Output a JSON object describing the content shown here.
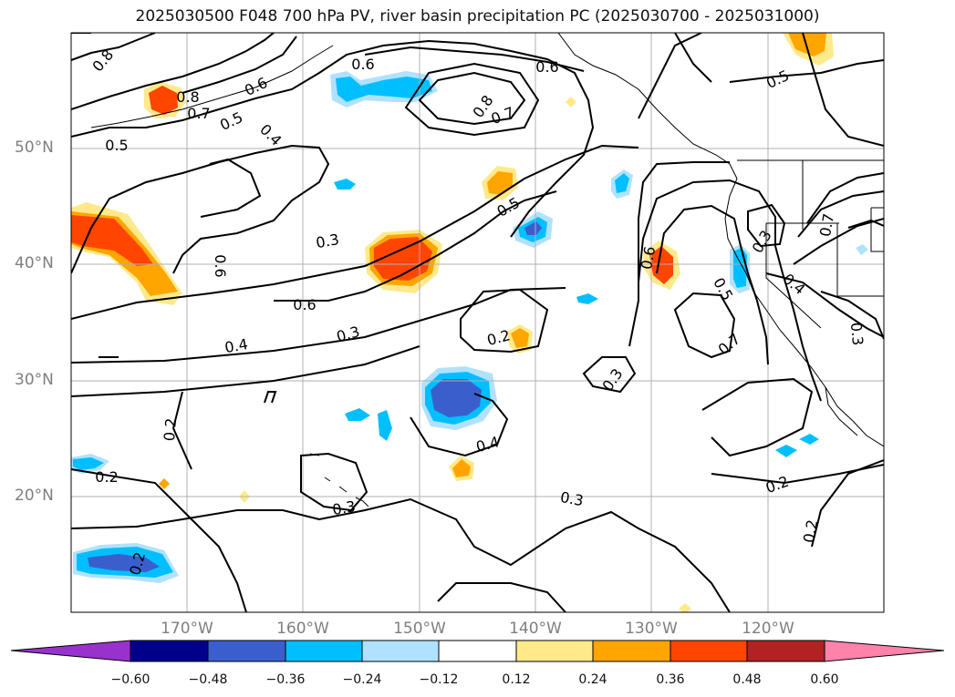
{
  "title": "2025030500 F048 700 hPa PV, river basin precipitation PC (2025030700 - 2025031000)",
  "lat_labels": [
    {
      "name": "lat-50n",
      "text": "50°N",
      "lat": 50
    },
    {
      "name": "lat-40n",
      "text": "40°N",
      "lat": 40
    },
    {
      "name": "lat-30n",
      "text": "30°N",
      "lat": 30
    },
    {
      "name": "lat-20n",
      "text": "20°N",
      "lat": 20
    }
  ],
  "lon_labels": [
    {
      "name": "lon-170w",
      "text": "170°W",
      "lon": -170
    },
    {
      "name": "lon-160w",
      "text": "160°W",
      "lon": -160
    },
    {
      "name": "lon-150w",
      "text": "150°W",
      "lon": -150
    },
    {
      "name": "lon-140w",
      "text": "140°W",
      "lon": -140
    },
    {
      "name": "lon-130w",
      "text": "130°W",
      "lon": -130
    },
    {
      "name": "lon-120w",
      "text": "120°W",
      "lon": -120
    }
  ],
  "contour_labels": [
    "0.8",
    "0.8",
    "0.7",
    "0.6",
    "0.5",
    "0.4",
    "0.5",
    "0.6",
    "0.8",
    "0.7",
    "0.5",
    "0.6",
    "0.3",
    "0.6",
    "0.5",
    "0.6",
    "0.7",
    "0.6",
    "0.3",
    "0.4",
    "0.5",
    "0.7",
    "0.3",
    "0.4",
    "0.3",
    "0.2",
    "0.3",
    "0.2",
    "0.4",
    "0.2",
    "0.3",
    "0.2",
    "0.2",
    "0.2",
    "0.3"
  ],
  "colorbar": {
    "colors": [
      "#9932cc",
      "#00008b",
      "#3a5fcd",
      "#00bfff",
      "#b0e2ff",
      "#ffffff",
      "#ffe98a",
      "#ffa500",
      "#ff4500",
      "#b22222",
      "#ff82ab"
    ],
    "labels": [
      "−0.60",
      "−0.48",
      "−0.36",
      "−0.24",
      "−0.12",
      "0.12",
      "0.24",
      "0.36",
      "0.48",
      "0.60"
    ]
  },
  "colors": {
    "contour": "#000000",
    "grid": "#b0b0b0",
    "axis_label": "#7f7f7f"
  }
}
